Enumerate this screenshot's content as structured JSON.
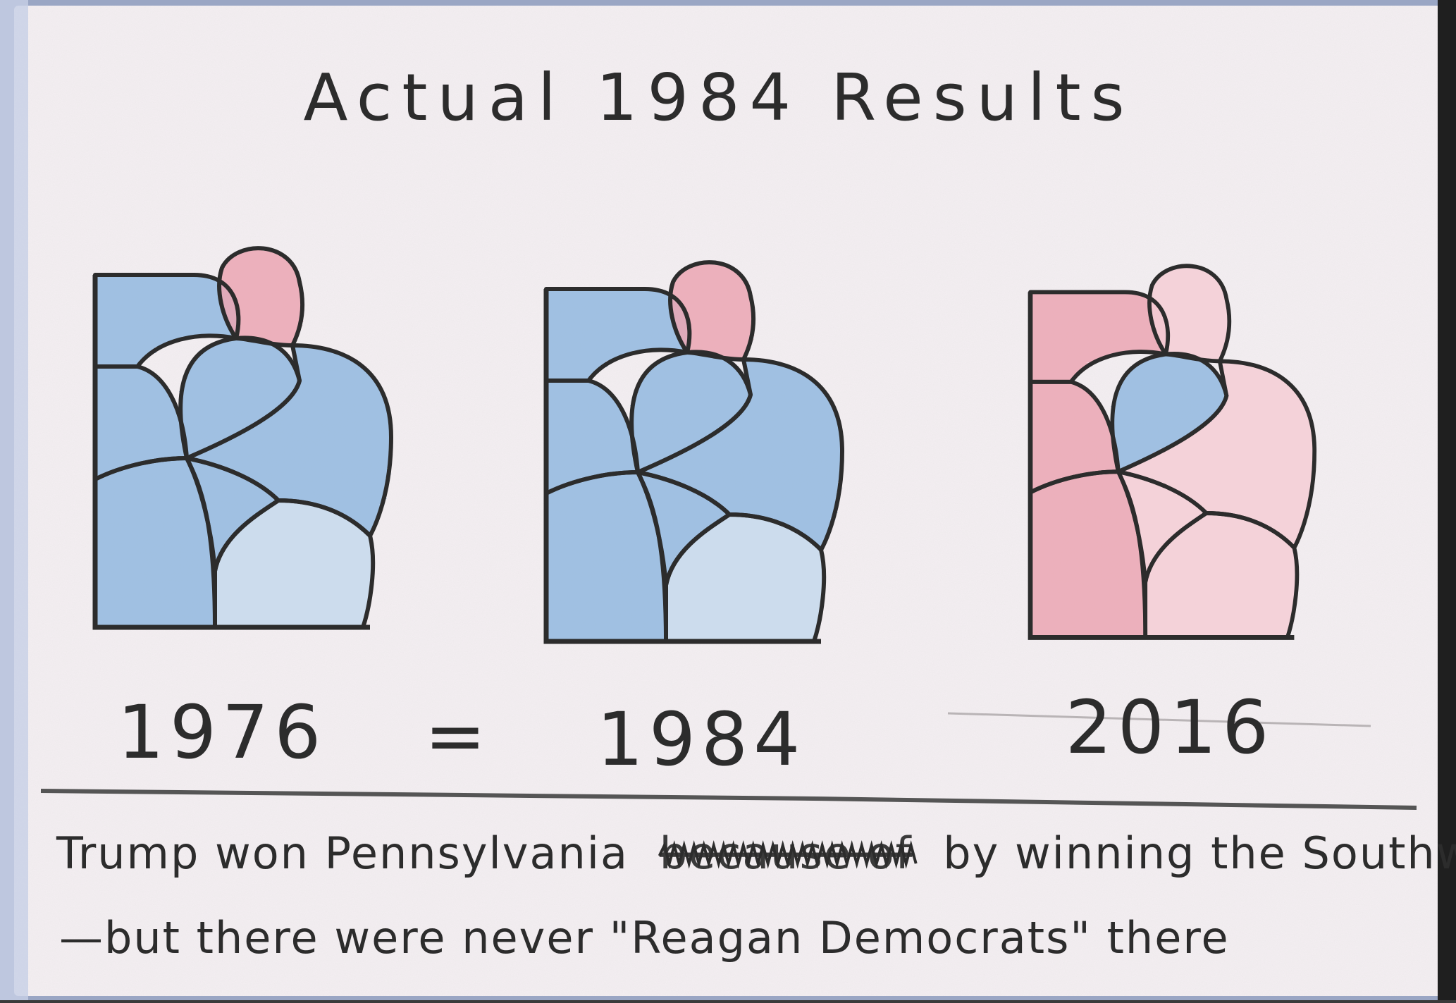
{
  "page": {
    "title": "Actual 1984 Results",
    "colors": {
      "paper": "#f3eef1",
      "pencil": "#2c2c2c",
      "democrat_blue": "#5b95cf",
      "republican_red": "#e2798c",
      "light_red": "#efb3c0",
      "pale_blue": "#a9c6e4"
    }
  },
  "maps": [
    {
      "year": "1976",
      "regions": [
        {
          "id": "northwest",
          "color": "democrat_blue"
        },
        {
          "id": "northeast",
          "color": "republican_red"
        },
        {
          "id": "central",
          "color": "democrat_blue"
        },
        {
          "id": "east",
          "color": "democrat_blue"
        },
        {
          "id": "west",
          "color": "democrat_blue"
        },
        {
          "id": "southwest",
          "color": "democrat_blue"
        },
        {
          "id": "southcentral",
          "color": "democrat_blue"
        },
        {
          "id": "southeast",
          "color": "pale_blue"
        }
      ]
    },
    {
      "year": "1984",
      "regions": [
        {
          "id": "northwest",
          "color": "democrat_blue"
        },
        {
          "id": "northeast",
          "color": "republican_red"
        },
        {
          "id": "central",
          "color": "democrat_blue"
        },
        {
          "id": "east",
          "color": "democrat_blue"
        },
        {
          "id": "west",
          "color": "democrat_blue"
        },
        {
          "id": "southwest",
          "color": "democrat_blue"
        },
        {
          "id": "southcentral",
          "color": "democrat_blue"
        },
        {
          "id": "southeast",
          "color": "pale_blue"
        }
      ]
    },
    {
      "year": "2016",
      "regions": [
        {
          "id": "northwest",
          "color": "republican_red"
        },
        {
          "id": "northeast",
          "color": "light_red"
        },
        {
          "id": "central",
          "color": "democrat_blue"
        },
        {
          "id": "east",
          "color": "light_red"
        },
        {
          "id": "west",
          "color": "republican_red"
        },
        {
          "id": "southwest",
          "color": "republican_red"
        },
        {
          "id": "southcentral",
          "color": "light_red"
        },
        {
          "id": "southeast",
          "color": "light_red"
        }
      ]
    }
  ],
  "equals_sign": "=",
  "caption": {
    "line1_before": "Trump won Pennsylvania",
    "struck_text": "because of",
    "line1_after": "by winning the Southwest",
    "line2": "—but there were never \"Reagan Democrats\" there"
  }
}
